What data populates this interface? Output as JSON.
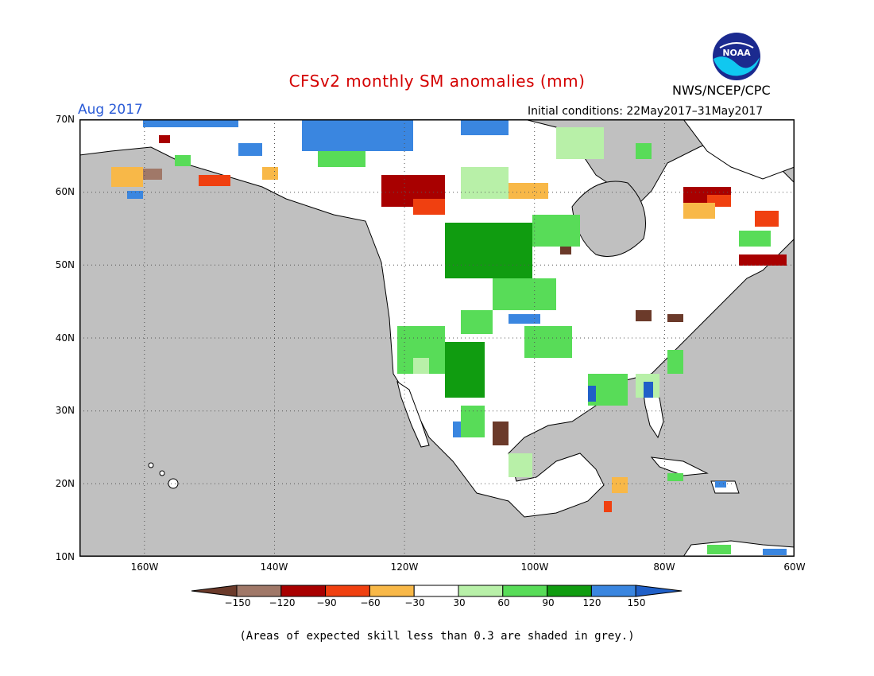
{
  "title": "CFSv2 monthly SM anomalies (mm)",
  "organization": "NWS/NCEP/CPC",
  "logo_text": "NOAA",
  "forecast_month": "Aug 2017",
  "initial_conditions": "Initial conditions: 22May2017–31May2017",
  "footnote": "(Areas of expected skill less than 0.3 are shaded in grey.)",
  "lat_labels": [
    "70N",
    "60N",
    "50N",
    "40N",
    "30N",
    "20N",
    "10N"
  ],
  "lon_labels": [
    "160W",
    "140W",
    "120W",
    "100W",
    "80W",
    "60W"
  ],
  "colorbar": {
    "tick_labels": [
      "−150",
      "−120",
      "−90",
      "−60",
      "−30",
      "30",
      "60",
      "90",
      "120",
      "150"
    ],
    "colors": [
      "#6b3a2a",
      "#a07868",
      "#a80000",
      "#f04010",
      "#f8b848",
      "#ffffff",
      "#b8f0a8",
      "#58dc58",
      "#109c10",
      "#3a86e0",
      "#2060c8"
    ]
  },
  "colors": {
    "ocean": "#c0c0c0",
    "land": "#ffffff",
    "title": "#d40000",
    "month_label": "#2a5bd7"
  },
  "map_extent": {
    "lon_min": -170,
    "lon_max": -60,
    "lat_min": 10,
    "lat_max": 70
  }
}
